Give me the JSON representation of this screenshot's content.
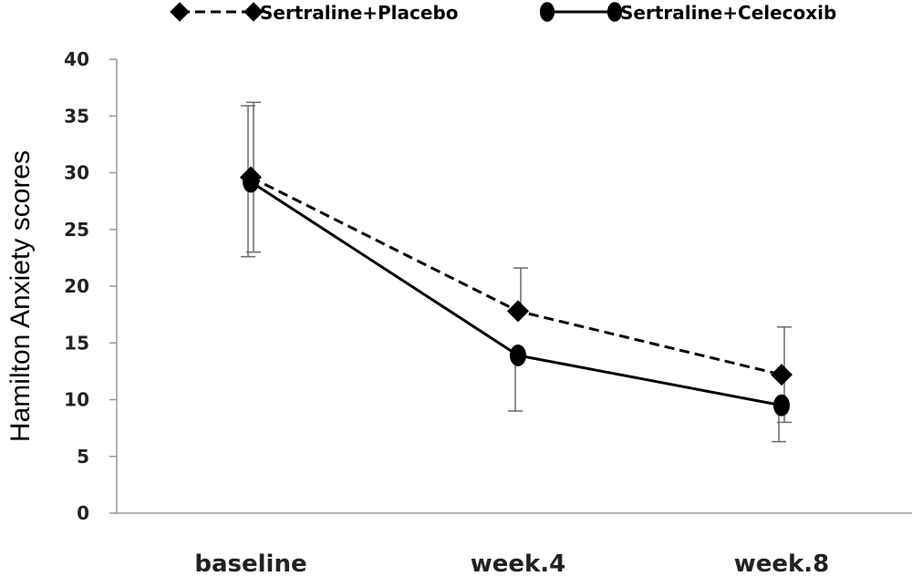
{
  "chart_data": {
    "type": "line",
    "ylabel": "Hamilton Anxiety scores",
    "xlabel": "",
    "ylim": [
      0,
      40
    ],
    "yticks": [
      0,
      5,
      10,
      15,
      20,
      25,
      30,
      35,
      40
    ],
    "categories": [
      "baseline",
      "week.4",
      "week.8"
    ],
    "legend_position": "top",
    "series": [
      {
        "name": "Sertraline+Placebo",
        "values": [
          29.6,
          17.8,
          12.2
        ],
        "error_low": [
          23.0,
          null,
          8.0
        ],
        "error_high": [
          36.2,
          21.6,
          16.4
        ],
        "marker": "diamond",
        "line_style": "dashed",
        "color": "#000000"
      },
      {
        "name": "Sertraline+Celecoxib",
        "values": [
          29.2,
          13.9,
          9.5
        ],
        "error_low": [
          22.6,
          9.0,
          6.3
        ],
        "error_high": [
          35.9,
          null,
          null
        ],
        "marker": "circle",
        "line_style": "solid",
        "color": "#000000"
      }
    ],
    "grid": false
  }
}
